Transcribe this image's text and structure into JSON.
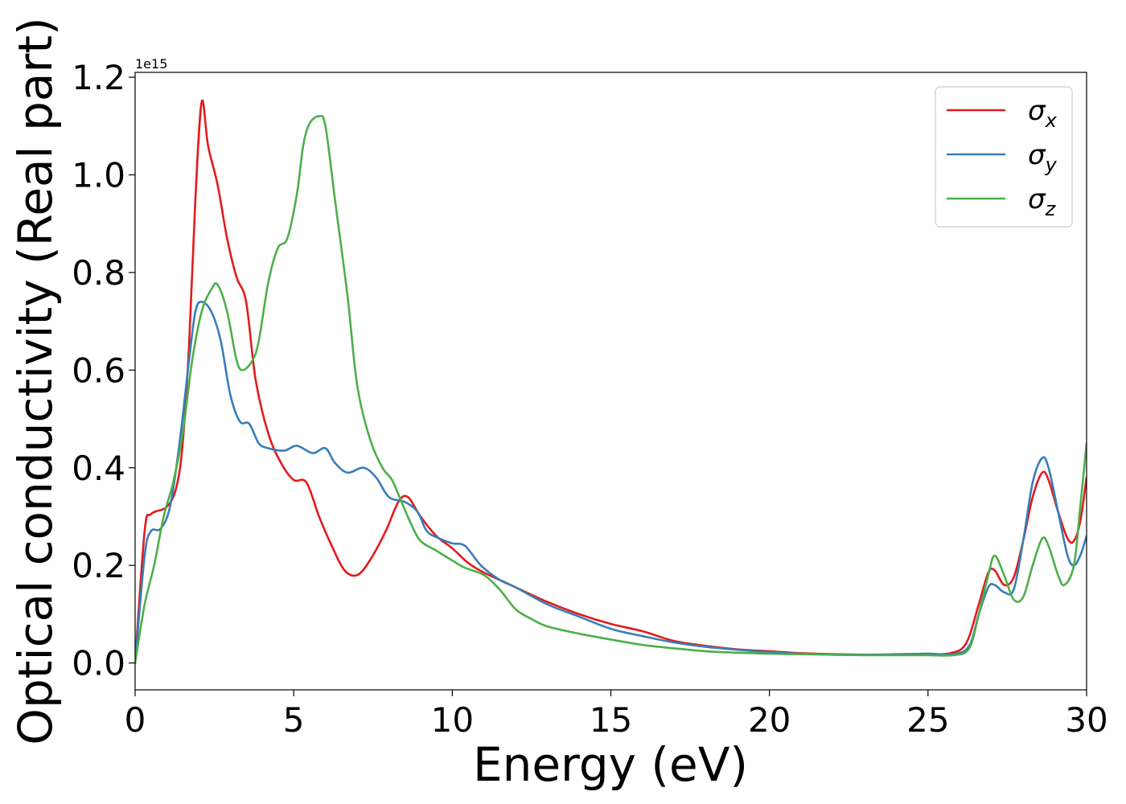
{
  "chart_data": {
    "type": "line",
    "title": "",
    "xlabel": "Energy (eV)",
    "ylabel": "Optical conductivity (Real part)",
    "xlim": [
      0,
      30
    ],
    "ylim": [
      -0.055,
      1.21
    ],
    "y_multiplier": "1e15",
    "xticks": [
      0,
      5,
      10,
      15,
      20,
      25,
      30
    ],
    "xtick_labels": [
      "0",
      "5",
      "10",
      "15",
      "20",
      "25",
      "30"
    ],
    "yticks": [
      0.0,
      0.2,
      0.4,
      0.6,
      0.8,
      1.0,
      1.2
    ],
    "ytick_labels": [
      "0.0",
      "0.2",
      "0.4",
      "0.6",
      "0.8",
      "1.0",
      "1.2"
    ],
    "grid": false,
    "legend_position": "top-right",
    "series": [
      {
        "name": "σx",
        "legend_base": "σ",
        "legend_sub": "x",
        "color": "#e41a1c",
        "points": [
          [
            0,
            0
          ],
          [
            0.3,
            0.27
          ],
          [
            0.5,
            0.305
          ],
          [
            1.0,
            0.32
          ],
          [
            1.3,
            0.36
          ],
          [
            1.5,
            0.45
          ],
          [
            1.7,
            0.65
          ],
          [
            1.9,
            0.95
          ],
          [
            2.1,
            1.15
          ],
          [
            2.3,
            1.06
          ],
          [
            2.6,
            0.98
          ],
          [
            2.9,
            0.87
          ],
          [
            3.2,
            0.79
          ],
          [
            3.5,
            0.74
          ],
          [
            3.8,
            0.58
          ],
          [
            4.2,
            0.47
          ],
          [
            4.6,
            0.41
          ],
          [
            5.0,
            0.375
          ],
          [
            5.4,
            0.37
          ],
          [
            5.8,
            0.3
          ],
          [
            6.2,
            0.24
          ],
          [
            6.6,
            0.19
          ],
          [
            7.0,
            0.18
          ],
          [
            7.4,
            0.21
          ],
          [
            7.9,
            0.27
          ],
          [
            8.3,
            0.33
          ],
          [
            8.6,
            0.34
          ],
          [
            9.0,
            0.3
          ],
          [
            9.5,
            0.26
          ],
          [
            10.0,
            0.235
          ],
          [
            10.5,
            0.205
          ],
          [
            11.0,
            0.185
          ],
          [
            11.5,
            0.17
          ],
          [
            12.0,
            0.155
          ],
          [
            13.0,
            0.125
          ],
          [
            14.0,
            0.1
          ],
          [
            15.0,
            0.08
          ],
          [
            16.0,
            0.065
          ],
          [
            17.0,
            0.045
          ],
          [
            18.0,
            0.035
          ],
          [
            19.0,
            0.028
          ],
          [
            20.0,
            0.024
          ],
          [
            21.0,
            0.02
          ],
          [
            22.0,
            0.018
          ],
          [
            23.0,
            0.017
          ],
          [
            24.0,
            0.017
          ],
          [
            25.0,
            0.018
          ],
          [
            25.7,
            0.02
          ],
          [
            26.2,
            0.04
          ],
          [
            26.6,
            0.12
          ],
          [
            26.9,
            0.185
          ],
          [
            27.1,
            0.19
          ],
          [
            27.4,
            0.16
          ],
          [
            27.7,
            0.175
          ],
          [
            28.0,
            0.25
          ],
          [
            28.3,
            0.34
          ],
          [
            28.6,
            0.39
          ],
          [
            28.8,
            0.375
          ],
          [
            29.1,
            0.31
          ],
          [
            29.4,
            0.255
          ],
          [
            29.6,
            0.25
          ],
          [
            29.8,
            0.29
          ],
          [
            30.0,
            0.38
          ]
        ]
      },
      {
        "name": "σy",
        "legend_base": "σ",
        "legend_sub": "y",
        "color": "#377eb8",
        "points": [
          [
            0,
            0
          ],
          [
            0.3,
            0.22
          ],
          [
            0.5,
            0.27
          ],
          [
            0.8,
            0.275
          ],
          [
            1.1,
            0.32
          ],
          [
            1.4,
            0.45
          ],
          [
            1.7,
            0.62
          ],
          [
            1.9,
            0.72
          ],
          [
            2.1,
            0.74
          ],
          [
            2.4,
            0.72
          ],
          [
            2.7,
            0.66
          ],
          [
            3.0,
            0.55
          ],
          [
            3.3,
            0.495
          ],
          [
            3.6,
            0.49
          ],
          [
            3.9,
            0.45
          ],
          [
            4.2,
            0.44
          ],
          [
            4.7,
            0.435
          ],
          [
            5.1,
            0.445
          ],
          [
            5.6,
            0.43
          ],
          [
            6.0,
            0.44
          ],
          [
            6.3,
            0.41
          ],
          [
            6.7,
            0.39
          ],
          [
            7.2,
            0.4
          ],
          [
            7.6,
            0.38
          ],
          [
            8.0,
            0.34
          ],
          [
            8.5,
            0.33
          ],
          [
            8.9,
            0.31
          ],
          [
            9.2,
            0.27
          ],
          [
            9.6,
            0.255
          ],
          [
            10.0,
            0.245
          ],
          [
            10.4,
            0.24
          ],
          [
            10.9,
            0.2
          ],
          [
            11.5,
            0.17
          ],
          [
            12.0,
            0.155
          ],
          [
            13.0,
            0.12
          ],
          [
            14.0,
            0.095
          ],
          [
            15.0,
            0.07
          ],
          [
            16.0,
            0.055
          ],
          [
            17.0,
            0.042
          ],
          [
            18.0,
            0.033
          ],
          [
            19.0,
            0.027
          ],
          [
            20.0,
            0.022
          ],
          [
            21.0,
            0.019
          ],
          [
            22.0,
            0.017
          ],
          [
            23.0,
            0.017
          ],
          [
            24.0,
            0.018
          ],
          [
            25.0,
            0.019
          ],
          [
            25.8,
            0.018
          ],
          [
            26.3,
            0.035
          ],
          [
            26.6,
            0.1
          ],
          [
            26.9,
            0.155
          ],
          [
            27.1,
            0.16
          ],
          [
            27.4,
            0.145
          ],
          [
            27.7,
            0.15
          ],
          [
            28.0,
            0.25
          ],
          [
            28.3,
            0.37
          ],
          [
            28.6,
            0.42
          ],
          [
            28.8,
            0.4
          ],
          [
            29.1,
            0.31
          ],
          [
            29.4,
            0.22
          ],
          [
            29.6,
            0.2
          ],
          [
            29.8,
            0.22
          ],
          [
            30.0,
            0.26
          ]
        ]
      },
      {
        "name": "σz",
        "legend_base": "σ",
        "legend_sub": "z",
        "color": "#4daf4a",
        "points": [
          [
            0,
            0
          ],
          [
            0.3,
            0.12
          ],
          [
            0.6,
            0.2
          ],
          [
            0.9,
            0.3
          ],
          [
            1.2,
            0.37
          ],
          [
            1.5,
            0.47
          ],
          [
            1.8,
            0.62
          ],
          [
            2.1,
            0.72
          ],
          [
            2.4,
            0.765
          ],
          [
            2.6,
            0.775
          ],
          [
            2.9,
            0.72
          ],
          [
            3.2,
            0.62
          ],
          [
            3.4,
            0.6
          ],
          [
            3.7,
            0.62
          ],
          [
            3.9,
            0.66
          ],
          [
            4.2,
            0.78
          ],
          [
            4.5,
            0.85
          ],
          [
            4.8,
            0.87
          ],
          [
            5.1,
            0.96
          ],
          [
            5.3,
            1.06
          ],
          [
            5.5,
            1.105
          ],
          [
            5.8,
            1.12
          ],
          [
            6.0,
            1.1
          ],
          [
            6.3,
            0.95
          ],
          [
            6.7,
            0.75
          ],
          [
            7.0,
            0.57
          ],
          [
            7.4,
            0.46
          ],
          [
            7.8,
            0.4
          ],
          [
            8.1,
            0.375
          ],
          [
            8.4,
            0.33
          ],
          [
            8.7,
            0.285
          ],
          [
            9.0,
            0.25
          ],
          [
            9.5,
            0.23
          ],
          [
            10.0,
            0.21
          ],
          [
            10.4,
            0.195
          ],
          [
            11.0,
            0.18
          ],
          [
            11.5,
            0.15
          ],
          [
            12.0,
            0.11
          ],
          [
            12.5,
            0.09
          ],
          [
            13.0,
            0.075
          ],
          [
            14.0,
            0.06
          ],
          [
            15.0,
            0.048
          ],
          [
            16.0,
            0.037
          ],
          [
            17.0,
            0.03
          ],
          [
            18.0,
            0.024
          ],
          [
            19.0,
            0.021
          ],
          [
            20.0,
            0.019
          ],
          [
            21.0,
            0.018
          ],
          [
            22.0,
            0.017
          ],
          [
            23.0,
            0.016
          ],
          [
            24.0,
            0.016
          ],
          [
            25.0,
            0.016
          ],
          [
            25.8,
            0.016
          ],
          [
            26.3,
            0.03
          ],
          [
            26.6,
            0.1
          ],
          [
            26.9,
            0.18
          ],
          [
            27.1,
            0.22
          ],
          [
            27.4,
            0.18
          ],
          [
            27.7,
            0.13
          ],
          [
            28.0,
            0.135
          ],
          [
            28.3,
            0.2
          ],
          [
            28.6,
            0.255
          ],
          [
            28.8,
            0.24
          ],
          [
            29.1,
            0.18
          ],
          [
            29.3,
            0.16
          ],
          [
            29.6,
            0.2
          ],
          [
            29.8,
            0.32
          ],
          [
            30.0,
            0.45
          ]
        ]
      }
    ]
  }
}
